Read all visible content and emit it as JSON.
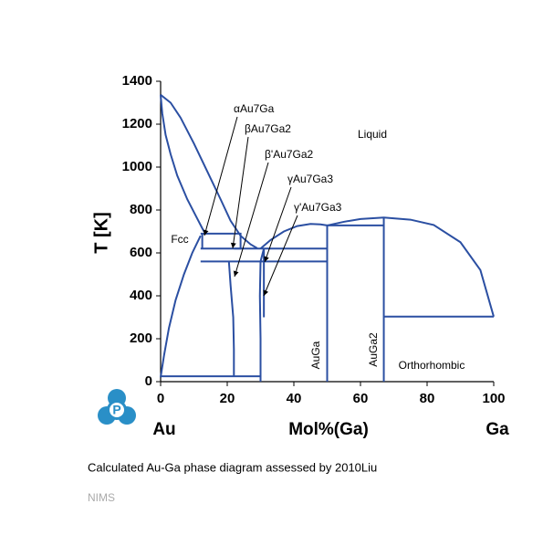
{
  "chart_data": {
    "type": "phase",
    "y_label": "T [K]",
    "x_label": "Mol%(Ga)",
    "x_left_label": "Au",
    "x_right_label": "Ga",
    "xlim": [
      0,
      100
    ],
    "xticks": [
      0,
      20,
      40,
      60,
      80,
      100
    ],
    "ylim": [
      0,
      1400
    ],
    "yticks": [
      0,
      200,
      400,
      600,
      800,
      1000,
      1200,
      1400
    ],
    "color": "#2b4fa2",
    "phase_labels": [
      "Liquid",
      "Fcc",
      "AuGa",
      "AuGa2",
      "Orthorhombic"
    ],
    "annotations": [
      "αAu7Ga",
      "βAu7Ga2",
      "β'Au7Ga2",
      "γAu7Ga3",
      "γ'Au7Ga3"
    ],
    "boundaries": [
      {
        "x": [
          0,
          3,
          6,
          10,
          14,
          18,
          21,
          24,
          27,
          29
        ],
        "y": [
          1337,
          1300,
          1230,
          1110,
          980,
          850,
          750,
          680,
          640,
          622
        ]
      },
      {
        "x": [
          0,
          0.5,
          1.5,
          3,
          5,
          8,
          11,
          13
        ],
        "y": [
          1337,
          1250,
          1150,
          1060,
          960,
          850,
          760,
          700
        ]
      },
      {
        "x": [
          0,
          1,
          2.5,
          4.5,
          7,
          9.5,
          12
        ],
        "y": [
          20,
          120,
          250,
          380,
          500,
          600,
          680
        ]
      },
      {
        "x": [
          30,
          33,
          37,
          41,
          45,
          48,
          50
        ],
        "y": [
          620,
          660,
          700,
          725,
          735,
          733,
          728
        ]
      },
      {
        "x": [
          50,
          55,
          60,
          67,
          75,
          82,
          90,
          96,
          100
        ],
        "y": [
          728,
          745,
          758,
          765,
          755,
          730,
          650,
          520,
          303
        ]
      },
      {
        "x": [
          12,
          22
        ],
        "y": [
          690,
          690
        ]
      },
      {
        "x": [
          12,
          50
        ],
        "y": [
          620,
          620
        ]
      },
      {
        "x": [
          12,
          50
        ],
        "y": [
          560,
          560
        ]
      },
      {
        "x": [
          12.5,
          12.5
        ],
        "y": [
          620,
          690
        ]
      },
      {
        "x": [
          20.5,
          21,
          21.8,
          22,
          22
        ],
        "y": [
          560,
          450,
          300,
          150,
          25
        ]
      },
      {
        "x": [
          31,
          30,
          29.8,
          30,
          30
        ],
        "y": [
          620,
          560,
          400,
          200,
          0
        ]
      },
      {
        "x": [
          31,
          31
        ],
        "y": [
          300,
          620
        ]
      },
      {
        "x": [
          0,
          30
        ],
        "y": [
          25,
          25
        ]
      },
      {
        "x": [
          50,
          50
        ],
        "y": [
          0,
          728
        ]
      },
      {
        "x": [
          50,
          67
        ],
        "y": [
          728,
          728
        ]
      },
      {
        "x": [
          67,
          67
        ],
        "y": [
          0,
          765
        ]
      },
      {
        "x": [
          67,
          100
        ],
        "y": [
          303,
          303
        ]
      },
      {
        "x": [
          22,
          24,
          24,
          22
        ],
        "y": [
          690,
          690,
          620,
          620
        ]
      }
    ]
  },
  "caption": "Calculated Au-Ga phase diagram assessed by 2010Liu",
  "source": "NIMS",
  "logo": "P"
}
